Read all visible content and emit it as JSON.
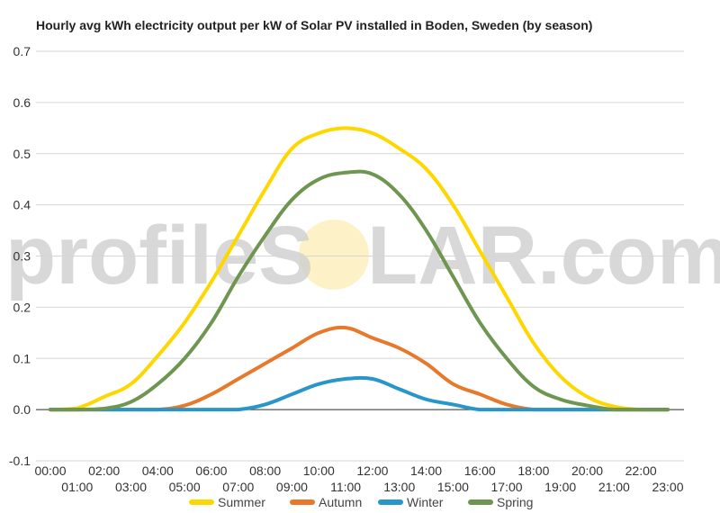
{
  "chart_data": {
    "type": "line",
    "title": "Hourly avg kWh electricity output per kW of Solar PV installed in Boden, Sweden (by season)",
    "watermark": {
      "left": "profileS",
      "right": "LAR.com"
    },
    "ylim": [
      -0.1,
      0.7
    ],
    "yticks": [
      "-0.1",
      "0.0",
      "0.1",
      "0.2",
      "0.3",
      "0.4",
      "0.5",
      "0.6",
      "0.7"
    ],
    "x": [
      "00:00",
      "01:00",
      "02:00",
      "03:00",
      "04:00",
      "05:00",
      "06:00",
      "07:00",
      "08:00",
      "09:00",
      "10:00",
      "11:00",
      "12:00",
      "13:00",
      "14:00",
      "15:00",
      "16:00",
      "17:00",
      "18:00",
      "19:00",
      "20:00",
      "21:00",
      "22:00",
      "23:00"
    ],
    "grid": true,
    "legend_position": "bottom",
    "series": [
      {
        "name": "Summer",
        "color": "#ffd700",
        "values": [
          0.0,
          0.003,
          0.025,
          0.05,
          0.105,
          0.17,
          0.25,
          0.34,
          0.43,
          0.51,
          0.54,
          0.55,
          0.54,
          0.51,
          0.47,
          0.4,
          0.31,
          0.22,
          0.13,
          0.065,
          0.025,
          0.006,
          0.0,
          0.0
        ]
      },
      {
        "name": "Autumn",
        "color": "#e8782a",
        "values": [
          0.0,
          0.0,
          0.0,
          0.0,
          0.0,
          0.008,
          0.03,
          0.06,
          0.09,
          0.12,
          0.15,
          0.16,
          0.14,
          0.12,
          0.09,
          0.05,
          0.03,
          0.01,
          0.0,
          0.0,
          0.0,
          0.0,
          0.0,
          0.0
        ]
      },
      {
        "name": "Winter",
        "color": "#2896c8",
        "values": [
          0.0,
          0.0,
          0.0,
          0.0,
          0.0,
          0.0,
          0.0,
          0.0,
          0.01,
          0.03,
          0.05,
          0.06,
          0.06,
          0.04,
          0.02,
          0.01,
          0.0,
          0.0,
          0.0,
          0.0,
          0.0,
          0.0,
          0.0,
          0.0
        ]
      },
      {
        "name": "Spring",
        "color": "#6e9650",
        "values": [
          0.0,
          0.0,
          0.002,
          0.015,
          0.05,
          0.1,
          0.17,
          0.26,
          0.34,
          0.41,
          0.45,
          0.463,
          0.46,
          0.42,
          0.35,
          0.26,
          0.17,
          0.1,
          0.045,
          0.02,
          0.008,
          0.0,
          0.0,
          0.0
        ]
      }
    ]
  }
}
